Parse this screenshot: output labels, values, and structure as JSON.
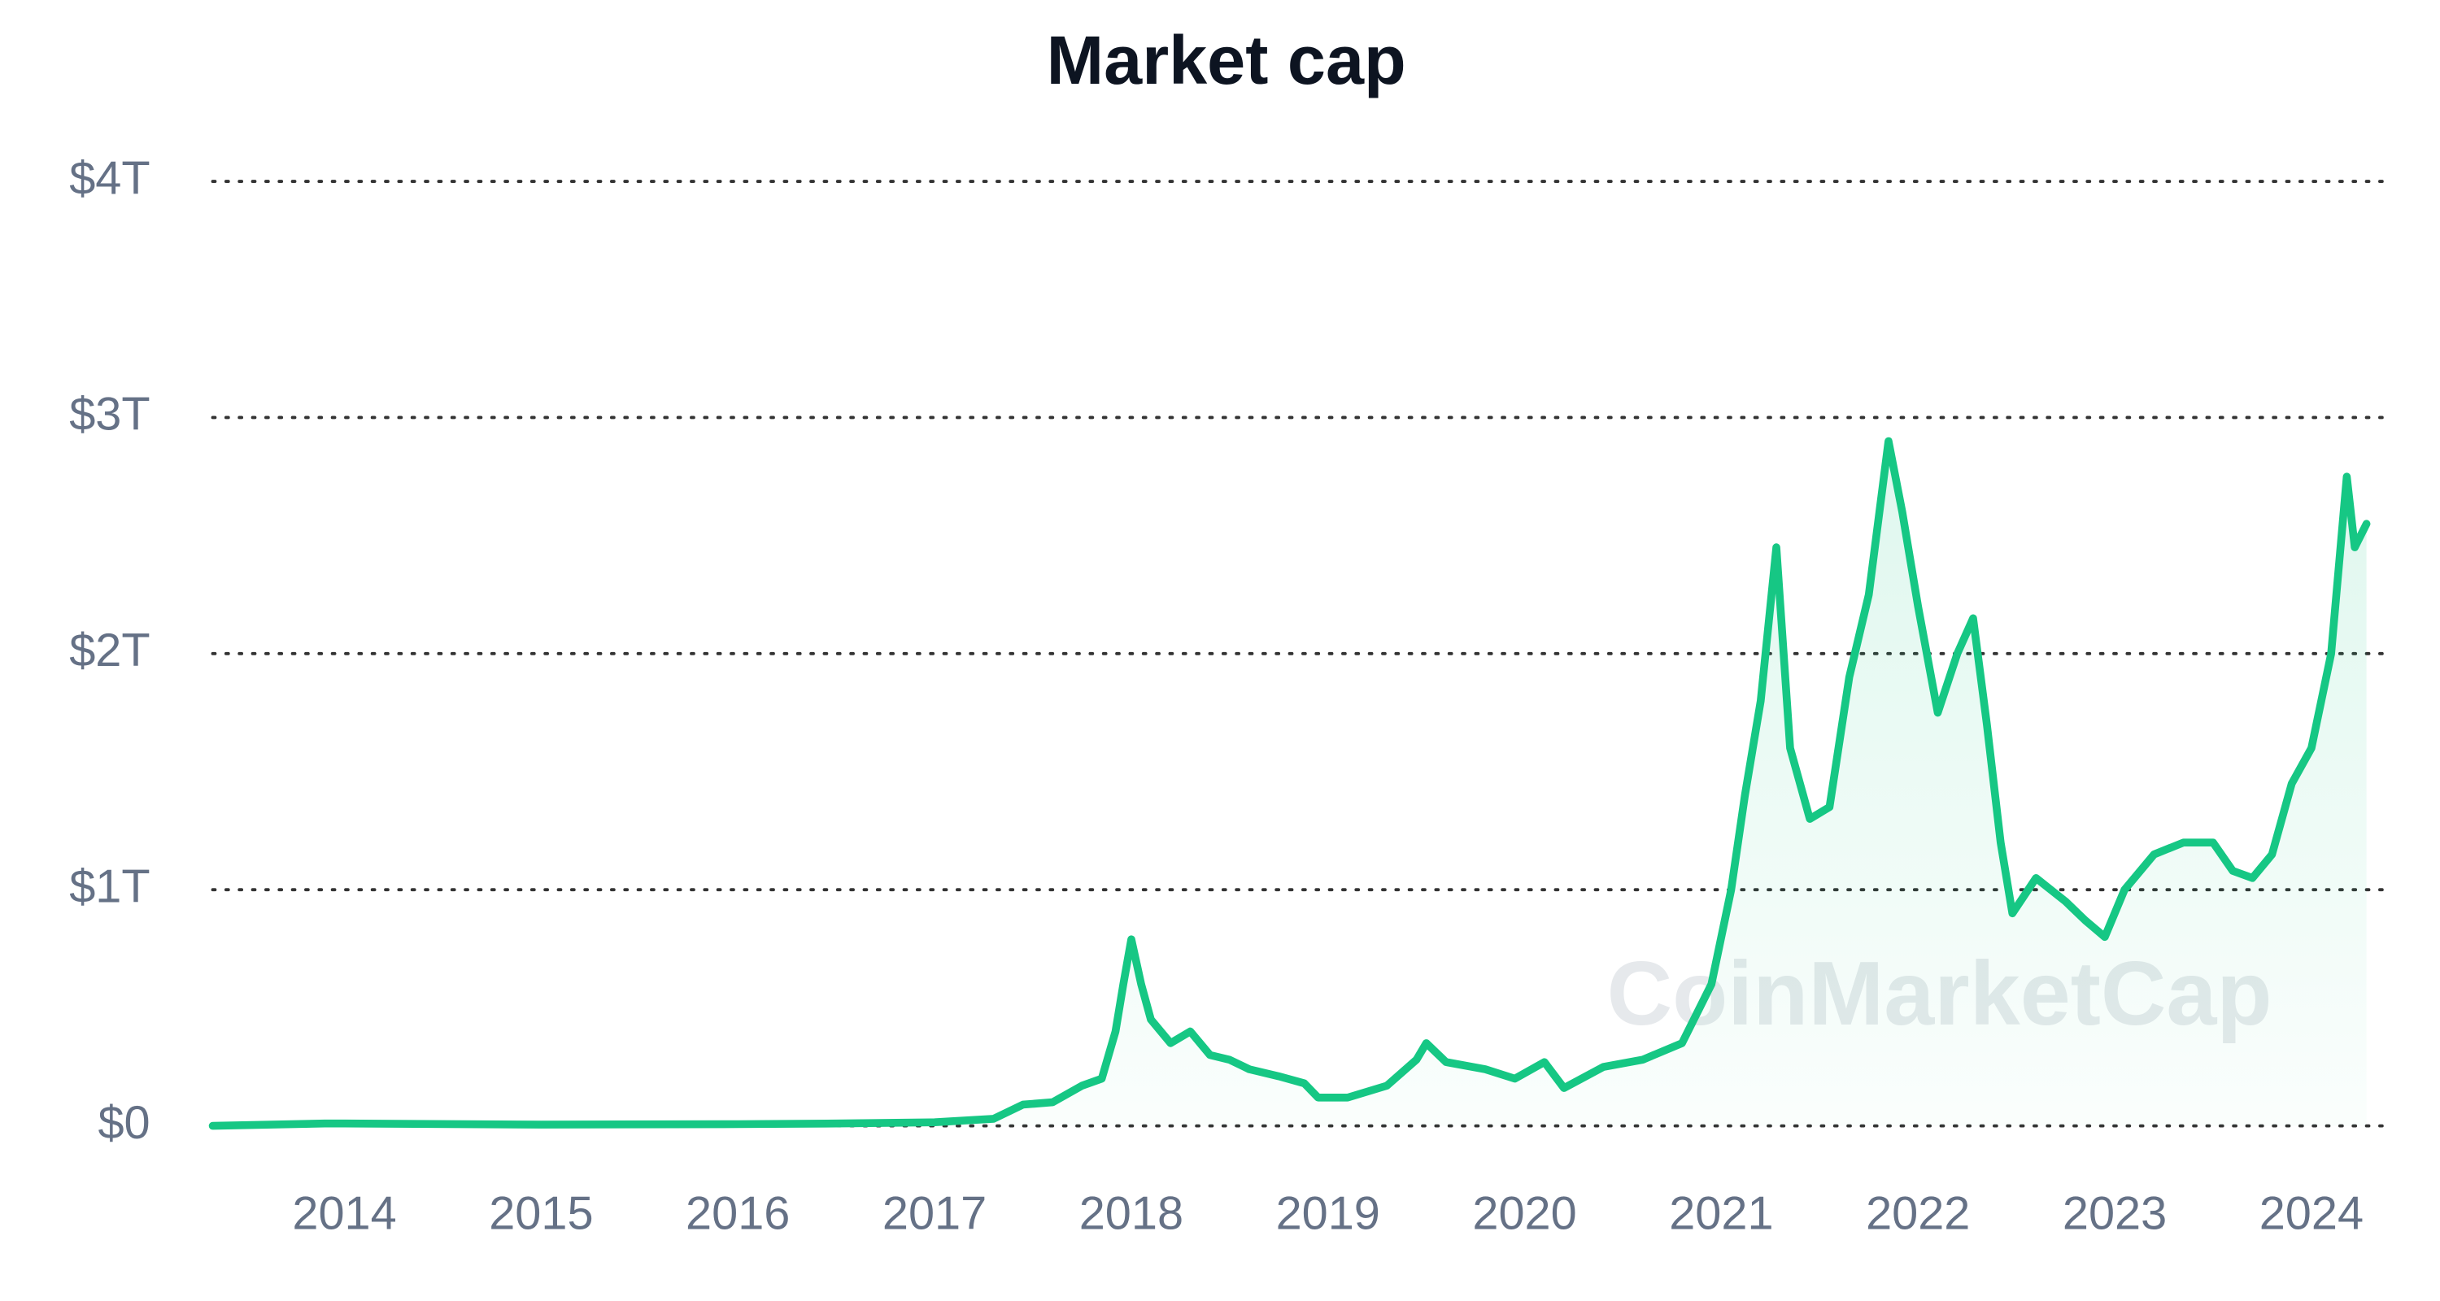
{
  "chart_data": {
    "type": "line",
    "title": "Market cap",
    "watermark": "CoinMarketCap",
    "x": [
      2013.33,
      2013.9,
      2014.0,
      2015.0,
      2016.0,
      2016.5,
      2017.0,
      2017.3,
      2017.45,
      2017.6,
      2017.75,
      2017.85,
      2017.92,
      2017.96,
      2018.0,
      2018.05,
      2018.1,
      2018.2,
      2018.3,
      2018.4,
      2018.5,
      2018.6,
      2018.75,
      2018.88,
      2018.95,
      2019.1,
      2019.3,
      2019.45,
      2019.5,
      2019.6,
      2019.8,
      2019.95,
      2020.1,
      2020.2,
      2020.4,
      2020.6,
      2020.8,
      2020.95,
      2021.05,
      2021.12,
      2021.2,
      2021.28,
      2021.35,
      2021.45,
      2021.55,
      2021.65,
      2021.75,
      2021.85,
      2021.92,
      2022.0,
      2022.1,
      2022.2,
      2022.28,
      2022.35,
      2022.42,
      2022.48,
      2022.6,
      2022.75,
      2022.85,
      2022.95,
      2023.05,
      2023.2,
      2023.35,
      2023.5,
      2023.6,
      2023.7,
      2023.8,
      2023.9,
      2024.0,
      2024.1,
      2024.18,
      2024.22,
      2024.28
    ],
    "series": [
      {
        "name": "Market cap",
        "color": "#16c784",
        "values": [
          0.0,
          0.01,
          0.01,
          0.005,
          0.007,
          0.01,
          0.015,
          0.03,
          0.09,
          0.1,
          0.17,
          0.2,
          0.4,
          0.6,
          0.79,
          0.6,
          0.45,
          0.35,
          0.4,
          0.3,
          0.28,
          0.24,
          0.21,
          0.18,
          0.12,
          0.12,
          0.17,
          0.28,
          0.35,
          0.27,
          0.24,
          0.2,
          0.27,
          0.16,
          0.25,
          0.28,
          0.35,
          0.6,
          1.0,
          1.4,
          1.8,
          2.45,
          1.6,
          1.3,
          1.35,
          1.9,
          2.25,
          2.9,
          2.6,
          2.2,
          1.75,
          2.0,
          2.15,
          1.7,
          1.2,
          0.9,
          1.05,
          0.95,
          0.87,
          0.8,
          1.0,
          1.15,
          1.2,
          1.2,
          1.08,
          1.05,
          1.15,
          1.45,
          1.6,
          2.0,
          2.75,
          2.45,
          2.55
        ]
      }
    ],
    "xlim": [
      2013.33,
      2024.28
    ],
    "xticks": [
      2014,
      2015,
      2016,
      2017,
      2018,
      2019,
      2020,
      2021,
      2022,
      2023,
      2024
    ],
    "ylim": [
      0,
      4
    ],
    "yticks": [
      {
        "value": 0,
        "label": "$0"
      },
      {
        "value": 1,
        "label": "$1T"
      },
      {
        "value": 2,
        "label": "$2T"
      },
      {
        "value": 3,
        "label": "$3T"
      },
      {
        "value": 4,
        "label": "$4T"
      }
    ],
    "grid": true
  }
}
